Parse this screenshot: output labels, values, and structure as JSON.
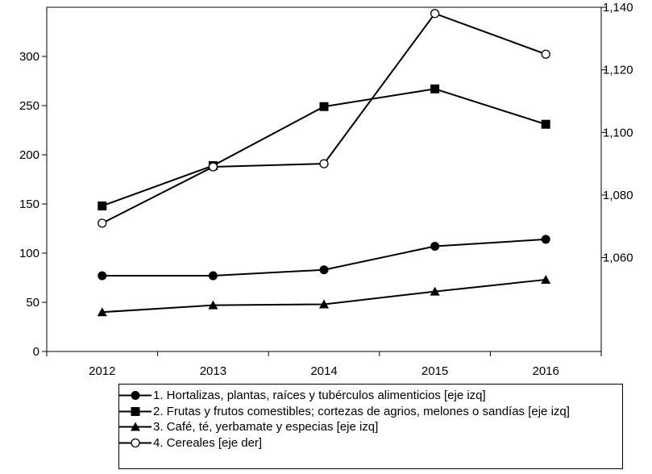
{
  "chart_data": {
    "type": "line",
    "categories": [
      "2012",
      "2013",
      "2014",
      "2015",
      "2016"
    ],
    "y_left": {
      "ticks": [
        "0",
        "50",
        "100",
        "150",
        "200",
        "250",
        "300"
      ],
      "range": [
        0,
        350
      ]
    },
    "y_right": {
      "ticks": [
        "1,060",
        "1,080",
        "1,100",
        "1,120",
        "1,140"
      ],
      "range": [
        1030,
        1140
      ]
    },
    "series": [
      {
        "name": "1. Hortalizas, plantas, raíces y tubérculos alimenticios [eje izq]",
        "axis": "left",
        "marker": "filled-circle",
        "values": [
          77,
          77,
          83,
          107,
          114
        ]
      },
      {
        "name": "2. Frutas y frutos comestibles; cortezas de agrios, melones o sandías [eje izq]",
        "axis": "left",
        "marker": "filled-square",
        "values": [
          148,
          189,
          249,
          267,
          231
        ]
      },
      {
        "name": "3. Café, té, yerbamate y especias [eje izq]",
        "axis": "left",
        "marker": "filled-triangle",
        "values": [
          40,
          47,
          48,
          61,
          73
        ]
      },
      {
        "name": "4. Cereales [eje der]",
        "axis": "right",
        "marker": "open-circle",
        "values": [
          1071,
          1089,
          1090,
          1138,
          1125
        ]
      }
    ],
    "grid": false,
    "legend": "bottom"
  }
}
